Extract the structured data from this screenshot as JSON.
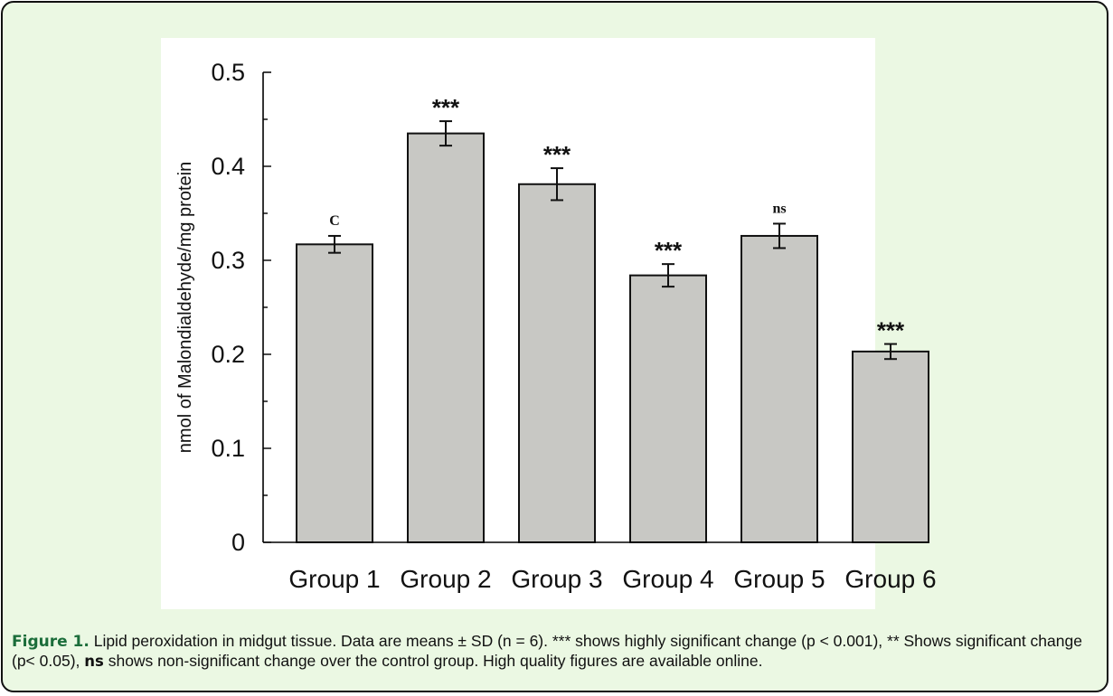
{
  "chart_data": {
    "type": "bar",
    "categories": [
      "Group 1",
      "Group 2",
      "Group 3",
      "Group 4",
      "Group 5",
      "Group 6"
    ],
    "values": [
      0.317,
      0.435,
      0.381,
      0.284,
      0.326,
      0.203
    ],
    "errors": [
      0.009,
      0.013,
      0.017,
      0.012,
      0.013,
      0.008
    ],
    "annotations": [
      "C",
      "***",
      "***",
      "***",
      "ns",
      "***"
    ],
    "ylabel": "nmol of Malondialdehyde/mg protein",
    "xlabel": "",
    "ylim": [
      0,
      0.5
    ],
    "yticks": [
      {
        "value": 0,
        "label": "0"
      },
      {
        "value": 0.1,
        "label": "0.1"
      },
      {
        "value": 0.2,
        "label": "0.2"
      },
      {
        "value": 0.3,
        "label": "0.3"
      },
      {
        "value": 0.4,
        "label": "0.4"
      },
      {
        "value": 0.5,
        "label": "0.5"
      }
    ],
    "grid": false,
    "colors": {
      "bar_fill": "#c8c8c4",
      "bar_stroke": "#111111",
      "background": "#ffffff"
    }
  },
  "caption": {
    "label": "Figure 1.",
    "text_1": " Lipid peroxidation in midgut tissue. Data are means ± SD (n = 6). *** shows highly significant change (p < 0.001), ** Shows significant change (p< 0.05), ",
    "bold_ns": "ns",
    "text_2": " shows non-significant change over the control group. High quality figures are available online."
  },
  "colors": {
    "page_background": "#ebf8e3",
    "caption_label": "#1b6d3a",
    "border": "#111111"
  }
}
